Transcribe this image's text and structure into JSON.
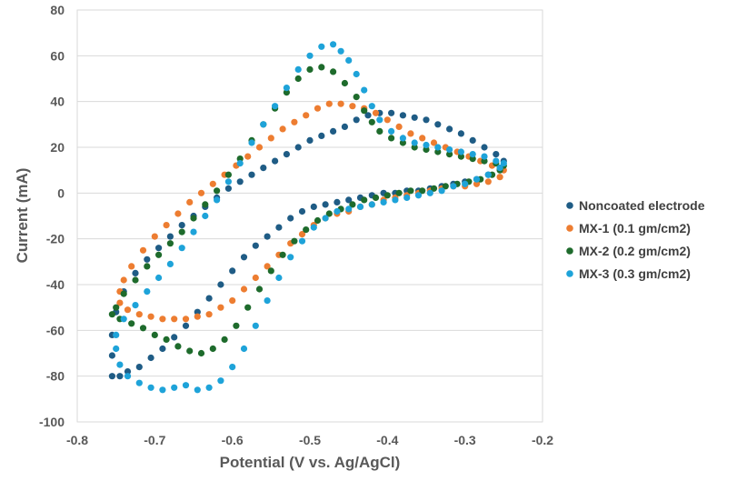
{
  "chart_data": {
    "type": "scatter",
    "xlabel": "Potential (V vs. Ag/AgCl)",
    "ylabel": "Current (mA)",
    "xlim": [
      -0.8,
      -0.2
    ],
    "ylim": [
      -100,
      80
    ],
    "xticks": [
      -0.8,
      -0.7,
      -0.6,
      -0.5,
      -0.4,
      -0.3,
      -0.2
    ],
    "yticks": [
      -100,
      -80,
      -60,
      -40,
      -20,
      0,
      20,
      40,
      60,
      80
    ],
    "xtick_labels": [
      "-0.8",
      "-0.7",
      "-0.6",
      "-0.5",
      "-0.4",
      "-0.3",
      "-0.2"
    ],
    "ytick_labels": [
      "-100",
      "-80",
      "-60",
      "-40",
      "-20",
      "0",
      "20",
      "40",
      "60",
      "80"
    ],
    "grid": "horizontal",
    "legend_position": "right",
    "series": [
      {
        "name": "Noncoated electrode",
        "color": "#1F5C85",
        "points": [
          [
            -0.755,
            -80
          ],
          [
            -0.745,
            -80
          ],
          [
            -0.735,
            -78
          ],
          [
            -0.72,
            -76
          ],
          [
            -0.705,
            -72
          ],
          [
            -0.69,
            -68
          ],
          [
            -0.675,
            -63
          ],
          [
            -0.66,
            -58
          ],
          [
            -0.645,
            -52
          ],
          [
            -0.63,
            -46
          ],
          [
            -0.615,
            -40
          ],
          [
            -0.6,
            -34
          ],
          [
            -0.585,
            -28
          ],
          [
            -0.57,
            -23
          ],
          [
            -0.555,
            -19
          ],
          [
            -0.54,
            -15
          ],
          [
            -0.525,
            -11
          ],
          [
            -0.51,
            -8
          ],
          [
            -0.495,
            -6
          ],
          [
            -0.48,
            -5
          ],
          [
            -0.465,
            -4
          ],
          [
            -0.45,
            -3
          ],
          [
            -0.435,
            -2
          ],
          [
            -0.42,
            -1
          ],
          [
            -0.405,
            0
          ],
          [
            -0.39,
            0
          ],
          [
            -0.375,
            1
          ],
          [
            -0.36,
            1
          ],
          [
            -0.345,
            2
          ],
          [
            -0.33,
            3
          ],
          [
            -0.315,
            4
          ],
          [
            -0.3,
            5
          ],
          [
            -0.285,
            6
          ],
          [
            -0.27,
            8
          ],
          [
            -0.255,
            11
          ],
          [
            -0.25,
            14
          ],
          [
            -0.26,
            17
          ],
          [
            -0.275,
            20
          ],
          [
            -0.29,
            23
          ],
          [
            -0.305,
            26
          ],
          [
            -0.32,
            28
          ],
          [
            -0.335,
            30
          ],
          [
            -0.35,
            32
          ],
          [
            -0.365,
            33
          ],
          [
            -0.38,
            34
          ],
          [
            -0.395,
            35
          ],
          [
            -0.41,
            35
          ],
          [
            -0.425,
            34
          ],
          [
            -0.44,
            32
          ],
          [
            -0.455,
            29
          ],
          [
            -0.47,
            27
          ],
          [
            -0.485,
            25
          ],
          [
            -0.5,
            23
          ],
          [
            -0.515,
            20
          ],
          [
            -0.53,
            17
          ],
          [
            -0.545,
            14
          ],
          [
            -0.56,
            11
          ],
          [
            -0.575,
            8
          ],
          [
            -0.59,
            5
          ],
          [
            -0.605,
            2
          ],
          [
            -0.62,
            -2
          ],
          [
            -0.635,
            -6
          ],
          [
            -0.65,
            -10
          ],
          [
            -0.665,
            -14
          ],
          [
            -0.68,
            -19
          ],
          [
            -0.695,
            -24
          ],
          [
            -0.71,
            -29
          ],
          [
            -0.725,
            -35
          ],
          [
            -0.74,
            -43
          ],
          [
            -0.75,
            -52
          ],
          [
            -0.755,
            -62
          ],
          [
            -0.755,
            -71
          ]
        ]
      },
      {
        "name": "MX-1 (0.1 gm/cm2)",
        "color": "#ED7D31",
        "points": [
          [
            -0.745,
            -48
          ],
          [
            -0.735,
            -51
          ],
          [
            -0.72,
            -53
          ],
          [
            -0.705,
            -54
          ],
          [
            -0.69,
            -55
          ],
          [
            -0.675,
            -55
          ],
          [
            -0.66,
            -55
          ],
          [
            -0.645,
            -54
          ],
          [
            -0.63,
            -53
          ],
          [
            -0.615,
            -50
          ],
          [
            -0.6,
            -47
          ],
          [
            -0.585,
            -42
          ],
          [
            -0.57,
            -37
          ],
          [
            -0.555,
            -32
          ],
          [
            -0.54,
            -27
          ],
          [
            -0.525,
            -22
          ],
          [
            -0.51,
            -18
          ],
          [
            -0.495,
            -14
          ],
          [
            -0.48,
            -11
          ],
          [
            -0.465,
            -9
          ],
          [
            -0.45,
            -8
          ],
          [
            -0.435,
            -6
          ],
          [
            -0.42,
            -5
          ],
          [
            -0.405,
            -3
          ],
          [
            -0.39,
            -2
          ],
          [
            -0.375,
            -1
          ],
          [
            -0.36,
            0
          ],
          [
            -0.345,
            1
          ],
          [
            -0.33,
            2
          ],
          [
            -0.315,
            3
          ],
          [
            -0.3,
            3
          ],
          [
            -0.285,
            4
          ],
          [
            -0.27,
            5
          ],
          [
            -0.255,
            7
          ],
          [
            -0.25,
            10
          ],
          [
            -0.265,
            12
          ],
          [
            -0.28,
            14
          ],
          [
            -0.295,
            16
          ],
          [
            -0.31,
            18
          ],
          [
            -0.325,
            20
          ],
          [
            -0.34,
            22
          ],
          [
            -0.355,
            24
          ],
          [
            -0.37,
            26
          ],
          [
            -0.385,
            29
          ],
          [
            -0.4,
            32
          ],
          [
            -0.415,
            35
          ],
          [
            -0.43,
            37
          ],
          [
            -0.445,
            38
          ],
          [
            -0.46,
            39
          ],
          [
            -0.475,
            39
          ],
          [
            -0.49,
            37
          ],
          [
            -0.505,
            34
          ],
          [
            -0.52,
            31
          ],
          [
            -0.535,
            28
          ],
          [
            -0.55,
            24
          ],
          [
            -0.565,
            20
          ],
          [
            -0.58,
            16
          ],
          [
            -0.595,
            12
          ],
          [
            -0.61,
            8
          ],
          [
            -0.625,
            4
          ],
          [
            -0.64,
            0
          ],
          [
            -0.655,
            -4
          ],
          [
            -0.67,
            -9
          ],
          [
            -0.685,
            -14
          ],
          [
            -0.7,
            -19
          ],
          [
            -0.715,
            -25
          ],
          [
            -0.73,
            -32
          ],
          [
            -0.74,
            -38
          ],
          [
            -0.745,
            -43
          ]
        ]
      },
      {
        "name": "MX-2 (0.2 gm/cm2)",
        "color": "#1E6B2C",
        "points": [
          [
            -0.755,
            -53
          ],
          [
            -0.745,
            -55
          ],
          [
            -0.73,
            -57
          ],
          [
            -0.715,
            -59
          ],
          [
            -0.7,
            -62
          ],
          [
            -0.685,
            -64
          ],
          [
            -0.67,
            -67
          ],
          [
            -0.655,
            -69
          ],
          [
            -0.64,
            -70
          ],
          [
            -0.625,
            -68
          ],
          [
            -0.61,
            -64
          ],
          [
            -0.595,
            -58
          ],
          [
            -0.58,
            -50
          ],
          [
            -0.565,
            -42
          ],
          [
            -0.55,
            -34
          ],
          [
            -0.535,
            -27
          ],
          [
            -0.52,
            -21
          ],
          [
            -0.505,
            -16
          ],
          [
            -0.49,
            -12
          ],
          [
            -0.475,
            -9
          ],
          [
            -0.46,
            -7
          ],
          [
            -0.445,
            -5
          ],
          [
            -0.43,
            -3
          ],
          [
            -0.415,
            -2
          ],
          [
            -0.4,
            -1
          ],
          [
            -0.385,
            0
          ],
          [
            -0.37,
            1
          ],
          [
            -0.355,
            1
          ],
          [
            -0.34,
            2
          ],
          [
            -0.325,
            3
          ],
          [
            -0.31,
            4
          ],
          [
            -0.295,
            5
          ],
          [
            -0.28,
            6
          ],
          [
            -0.265,
            8
          ],
          [
            -0.255,
            10
          ],
          [
            -0.25,
            12
          ],
          [
            -0.26,
            13
          ],
          [
            -0.275,
            14
          ],
          [
            -0.29,
            15
          ],
          [
            -0.305,
            16
          ],
          [
            -0.32,
            17
          ],
          [
            -0.335,
            18
          ],
          [
            -0.35,
            19
          ],
          [
            -0.365,
            20
          ],
          [
            -0.38,
            22
          ],
          [
            -0.395,
            24
          ],
          [
            -0.41,
            27
          ],
          [
            -0.42,
            31
          ],
          [
            -0.43,
            36
          ],
          [
            -0.44,
            42
          ],
          [
            -0.455,
            48
          ],
          [
            -0.47,
            53
          ],
          [
            -0.485,
            55
          ],
          [
            -0.5,
            54
          ],
          [
            -0.515,
            50
          ],
          [
            -0.53,
            44
          ],
          [
            -0.545,
            37
          ],
          [
            -0.56,
            30
          ],
          [
            -0.575,
            23
          ],
          [
            -0.59,
            15
          ],
          [
            -0.605,
            8
          ],
          [
            -0.62,
            1
          ],
          [
            -0.635,
            -5
          ],
          [
            -0.65,
            -11
          ],
          [
            -0.665,
            -17
          ],
          [
            -0.68,
            -22
          ],
          [
            -0.695,
            -27
          ],
          [
            -0.71,
            -32
          ],
          [
            -0.725,
            -38
          ],
          [
            -0.74,
            -44
          ],
          [
            -0.75,
            -50
          ]
        ]
      },
      {
        "name": "MX-3 (0.3 gm/cm2)",
        "color": "#1EA3D9",
        "points": [
          [
            -0.75,
            -68
          ],
          [
            -0.745,
            -75
          ],
          [
            -0.735,
            -80
          ],
          [
            -0.72,
            -83
          ],
          [
            -0.705,
            -85
          ],
          [
            -0.69,
            -86
          ],
          [
            -0.675,
            -85
          ],
          [
            -0.66,
            -84
          ],
          [
            -0.645,
            -86
          ],
          [
            -0.63,
            -85
          ],
          [
            -0.615,
            -82
          ],
          [
            -0.6,
            -76
          ],
          [
            -0.585,
            -68
          ],
          [
            -0.57,
            -58
          ],
          [
            -0.555,
            -47
          ],
          [
            -0.54,
            -37
          ],
          [
            -0.525,
            -28
          ],
          [
            -0.51,
            -21
          ],
          [
            -0.495,
            -15
          ],
          [
            -0.48,
            -11
          ],
          [
            -0.465,
            -8
          ],
          [
            -0.45,
            -7
          ],
          [
            -0.435,
            -6
          ],
          [
            -0.42,
            -5
          ],
          [
            -0.405,
            -4
          ],
          [
            -0.39,
            -3
          ],
          [
            -0.375,
            -2
          ],
          [
            -0.36,
            -1
          ],
          [
            -0.345,
            0
          ],
          [
            -0.33,
            1
          ],
          [
            -0.315,
            3
          ],
          [
            -0.3,
            4
          ],
          [
            -0.285,
            6
          ],
          [
            -0.27,
            8
          ],
          [
            -0.255,
            11
          ],
          [
            -0.25,
            13
          ],
          [
            -0.26,
            14
          ],
          [
            -0.275,
            16
          ],
          [
            -0.29,
            17
          ],
          [
            -0.305,
            18
          ],
          [
            -0.32,
            19
          ],
          [
            -0.335,
            20
          ],
          [
            -0.35,
            21
          ],
          [
            -0.365,
            22
          ],
          [
            -0.38,
            24
          ],
          [
            -0.395,
            27
          ],
          [
            -0.41,
            32
          ],
          [
            -0.42,
            38
          ],
          [
            -0.43,
            45
          ],
          [
            -0.44,
            52
          ],
          [
            -0.45,
            58
          ],
          [
            -0.46,
            62
          ],
          [
            -0.47,
            65
          ],
          [
            -0.485,
            64
          ],
          [
            -0.5,
            60
          ],
          [
            -0.515,
            54
          ],
          [
            -0.53,
            46
          ],
          [
            -0.545,
            38
          ],
          [
            -0.56,
            30
          ],
          [
            -0.575,
            22
          ],
          [
            -0.59,
            13
          ],
          [
            -0.605,
            5
          ],
          [
            -0.62,
            -3
          ],
          [
            -0.635,
            -10
          ],
          [
            -0.65,
            -17
          ],
          [
            -0.665,
            -24
          ],
          [
            -0.68,
            -31
          ],
          [
            -0.695,
            -37
          ],
          [
            -0.71,
            -43
          ],
          [
            -0.725,
            -49
          ],
          [
            -0.74,
            -55
          ],
          [
            -0.75,
            -62
          ]
        ]
      }
    ]
  }
}
